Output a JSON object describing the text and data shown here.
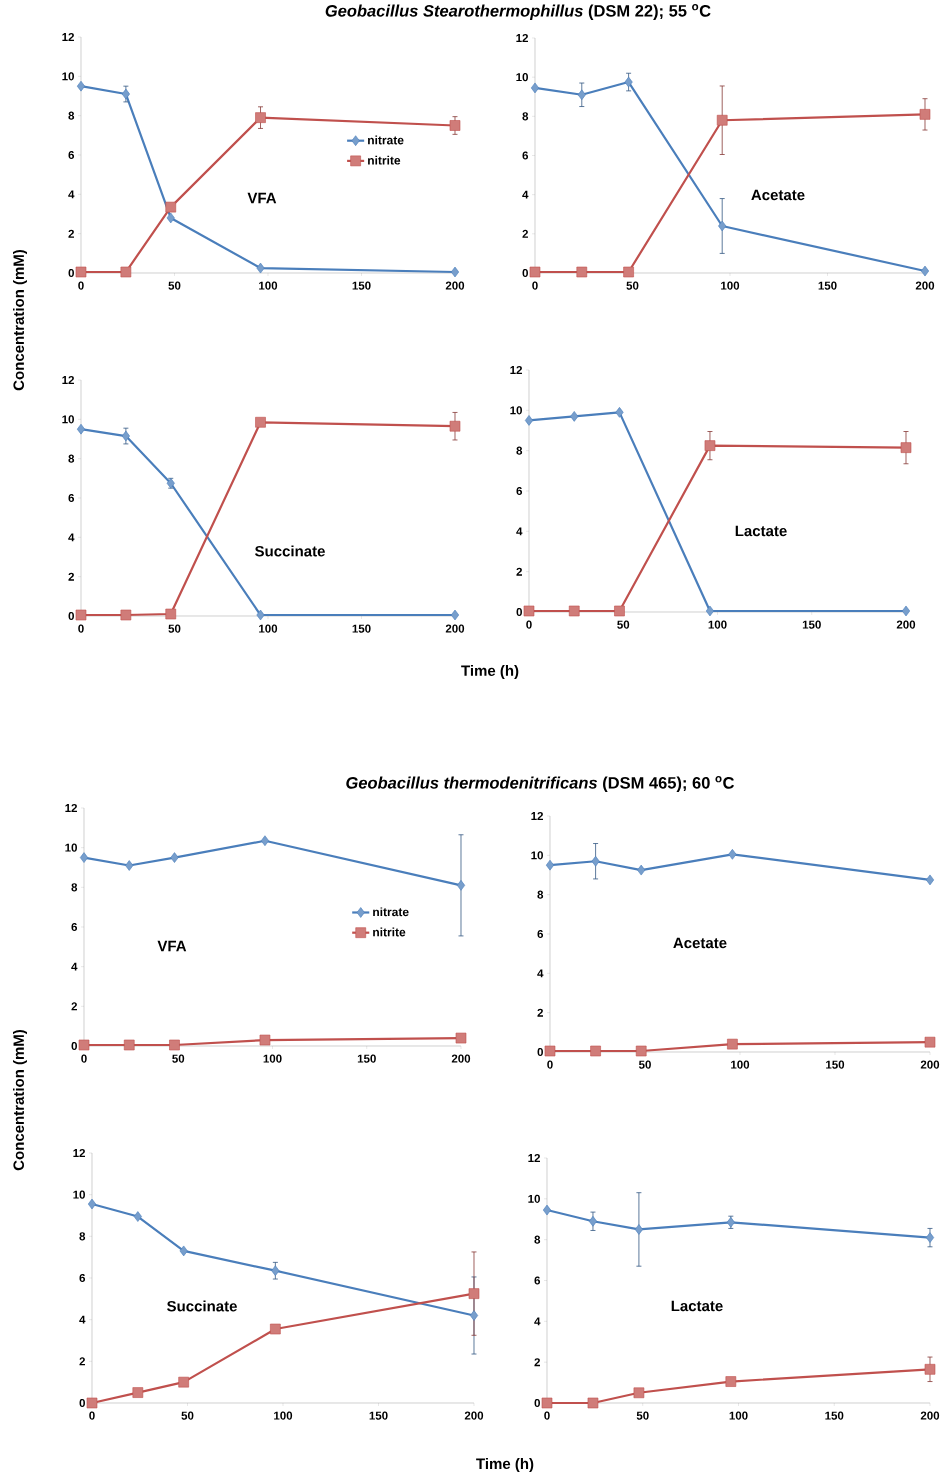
{
  "chart_data": [
    {
      "type": "line",
      "title": "*Geobacillus Stearothermophillus* (DSM 22); 55 $^{o}$C",
      "ylabel": "Concentration (mM)",
      "annotations": [
        "VFA"
      ],
      "x": [
        0,
        24,
        48,
        96,
        200
      ],
      "xlim": [
        0,
        200
      ],
      "ylim": [
        0,
        12
      ],
      "xticks": [
        0,
        50,
        100,
        150,
        200
      ],
      "yticks": [
        0,
        2,
        4,
        6,
        8,
        10,
        12
      ],
      "legend": "right",
      "line_style": "solid",
      "series": [
        {
          "name": "nitrate",
          "color": "#4a7ebb",
          "marker": "diamond",
          "values": [
            9.5,
            9.1,
            2.8,
            0.25,
            0.05
          ],
          "errors": [
            null,
            0.4,
            null,
            null,
            null
          ]
        },
        {
          "name": "nitrite",
          "color": "#c0504d",
          "marker": "square",
          "values": [
            0.05,
            0.05,
            3.35,
            7.9,
            7.5
          ],
          "errors": [
            null,
            null,
            null,
            0.55,
            0.45
          ]
        }
      ]
    },
    {
      "type": "line",
      "annotations": [
        "Acetate"
      ],
      "x": [
        0,
        24,
        48,
        96,
        200
      ],
      "xlim": [
        0,
        200
      ],
      "ylim": [
        0,
        12
      ],
      "xticks": [
        0,
        50,
        100,
        150,
        200
      ],
      "yticks": [
        0,
        2,
        4,
        6,
        8,
        10,
        12
      ],
      "line_style": "solid",
      "series": [
        {
          "color": "#4a7ebb",
          "marker": "diamond",
          "values": [
            9.45,
            9.1,
            9.75,
            2.4,
            0.1
          ],
          "errors": [
            null,
            0.6,
            0.45,
            1.4,
            null
          ]
        },
        {
          "color": "#c0504d",
          "marker": "square",
          "values": [
            0.05,
            0.05,
            0.05,
            7.8,
            8.1
          ],
          "errors": [
            null,
            null,
            null,
            1.75,
            0.8
          ]
        }
      ]
    },
    {
      "type": "line",
      "annotations": [
        "Succinate"
      ],
      "x": [
        0,
        24,
        48,
        96,
        200
      ],
      "xlim": [
        0,
        200
      ],
      "ylim": [
        0,
        12
      ],
      "xticks": [
        0,
        50,
        100,
        150,
        200
      ],
      "yticks": [
        0,
        2,
        4,
        6,
        8,
        10,
        12
      ],
      "line_style": "solid",
      "series": [
        {
          "color": "#4a7ebb",
          "marker": "diamond",
          "values": [
            9.5,
            9.15,
            6.75,
            0.05,
            0.05
          ],
          "errors": [
            null,
            0.4,
            0.25,
            null,
            null
          ]
        },
        {
          "color": "#c0504d",
          "marker": "square",
          "values": [
            0.05,
            0.05,
            0.1,
            9.85,
            9.65
          ],
          "errors": [
            null,
            null,
            null,
            null,
            0.7
          ]
        }
      ]
    },
    {
      "type": "line",
      "xlabel": "Time (h)",
      "annotations": [
        "Lactate"
      ],
      "x": [
        0,
        24,
        48,
        96,
        200
      ],
      "xlim": [
        0,
        200
      ],
      "ylim": [
        0,
        12
      ],
      "xticks": [
        0,
        50,
        100,
        150,
        200
      ],
      "yticks": [
        0,
        2,
        4,
        6,
        8,
        10,
        12
      ],
      "line_style": "solid",
      "series": [
        {
          "color": "#4a7ebb",
          "marker": "diamond",
          "values": [
            9.5,
            9.7,
            9.9,
            0.05,
            0.05
          ],
          "errors": [
            null,
            null,
            null,
            null,
            null
          ]
        },
        {
          "color": "#c0504d",
          "marker": "square",
          "values": [
            0.05,
            0.05,
            0.05,
            8.25,
            8.15
          ],
          "errors": [
            null,
            null,
            null,
            0.7,
            0.8
          ]
        }
      ]
    },
    {
      "type": "line",
      "title": "*Geobacillus thermodenitrificans* (DSM 465); 60 $^{o}$C",
      "ylabel": "Concentration (mM)",
      "annotations": [
        "VFA"
      ],
      "x": [
        0,
        24,
        48,
        96,
        200
      ],
      "xlim": [
        0,
        200
      ],
      "ylim": [
        0,
        12
      ],
      "xticks": [
        0,
        50,
        100,
        150,
        200
      ],
      "yticks": [
        0,
        2,
        4,
        6,
        8,
        10,
        12
      ],
      "legend": "right",
      "line_style": "solid",
      "series": [
        {
          "name": "nitrate",
          "color": "#4a7ebb",
          "marker": "diamond",
          "values": [
            9.5,
            9.1,
            9.5,
            10.35,
            8.1
          ],
          "errors": [
            null,
            null,
            null,
            null,
            2.55
          ]
        },
        {
          "name": "nitrite",
          "color": "#c0504d",
          "marker": "square",
          "values": [
            0.05,
            0.05,
            0.05,
            0.3,
            0.4
          ],
          "errors": [
            null,
            null,
            null,
            null,
            null
          ]
        }
      ]
    },
    {
      "type": "line",
      "annotations": [
        "Acetate"
      ],
      "x": [
        0,
        24,
        48,
        96,
        200
      ],
      "xlim": [
        0,
        200
      ],
      "ylim": [
        0,
        12
      ],
      "xticks": [
        0,
        50,
        100,
        150,
        200
      ],
      "yticks": [
        0,
        2,
        4,
        6,
        8,
        10,
        12
      ],
      "line_style": "solid",
      "series": [
        {
          "color": "#4a7ebb",
          "marker": "diamond",
          "values": [
            9.5,
            9.7,
            9.25,
            10.05,
            8.75
          ],
          "errors": [
            null,
            0.9,
            null,
            null,
            null
          ]
        },
        {
          "color": "#c0504d",
          "marker": "square",
          "values": [
            0.05,
            0.05,
            0.05,
            0.4,
            0.5
          ],
          "errors": [
            null,
            null,
            null,
            null,
            null
          ]
        }
      ]
    },
    {
      "type": "line",
      "annotations": [
        "Succinate"
      ],
      "x": [
        0,
        24,
        48,
        96,
        200
      ],
      "xlim": [
        0,
        200
      ],
      "ylim": [
        0,
        12
      ],
      "xticks": [
        0,
        50,
        100,
        150,
        200
      ],
      "yticks": [
        0,
        2,
        4,
        6,
        8,
        10,
        12
      ],
      "line_style": "solid",
      "series": [
        {
          "color": "#4a7ebb",
          "marker": "diamond",
          "values": [
            9.55,
            8.95,
            7.3,
            6.35,
            4.2
          ],
          "errors": [
            null,
            null,
            null,
            0.4,
            1.85
          ]
        },
        {
          "color": "#c0504d",
          "marker": "square",
          "values": [
            0,
            0.5,
            1.0,
            3.55,
            5.25
          ],
          "errors": [
            null,
            null,
            null,
            null,
            2.0
          ]
        }
      ]
    },
    {
      "type": "line",
      "xlabel": "Time (h)",
      "annotations": [
        "Lactate"
      ],
      "x": [
        0,
        24,
        48,
        96,
        200
      ],
      "xlim": [
        0,
        200
      ],
      "ylim": [
        0,
        12
      ],
      "xticks": [
        0,
        50,
        100,
        150,
        200
      ],
      "yticks": [
        0,
        2,
        4,
        6,
        8,
        10,
        12
      ],
      "line_style": "solid",
      "series": [
        {
          "color": "#4a7ebb",
          "marker": "diamond",
          "values": [
            9.45,
            8.9,
            8.5,
            8.85,
            8.1
          ],
          "errors": [
            null,
            0.45,
            1.8,
            0.3,
            0.45
          ]
        },
        {
          "color": "#c0504d",
          "marker": "square",
          "values": [
            0,
            0,
            0.5,
            1.05,
            1.65
          ],
          "errors": [
            null,
            null,
            null,
            null,
            0.6
          ]
        }
      ]
    }
  ]
}
